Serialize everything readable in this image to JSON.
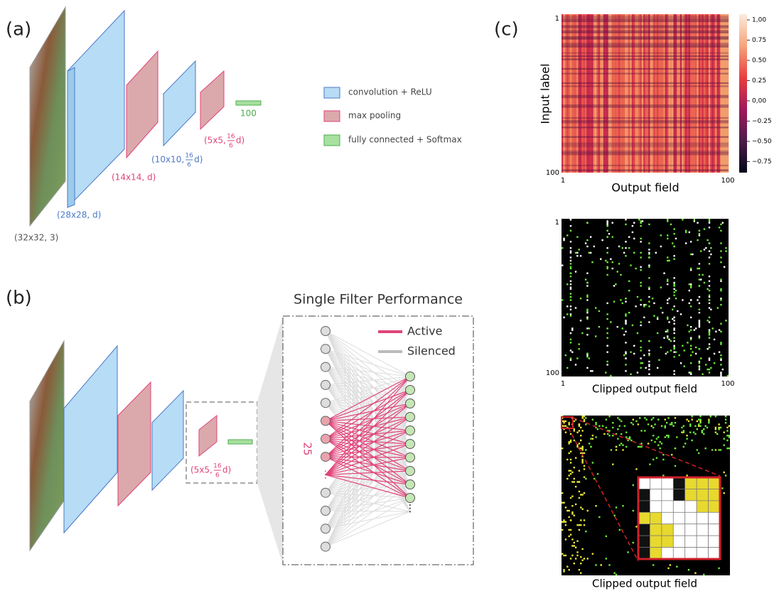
{
  "panel_a": {
    "label": "(a)",
    "input_size": "(32x32, 3)",
    "conv1_size": "(28x28, d)",
    "pool1_size": "(14x14, d)",
    "conv2_size": {
      "prefix": "(10x10, ",
      "numerator": "16",
      "denominator": "6",
      "suffix": "d)"
    },
    "pool2_size": {
      "prefix": "(5x5, ",
      "numerator": "16",
      "denominator": "6",
      "suffix": "d)"
    },
    "fc_size": "100",
    "legend": [
      "convolution + ReLU",
      "max pooling",
      "fully connected + Softmax"
    ]
  },
  "panel_b": {
    "label": "(b)",
    "pool2_size": {
      "prefix": "(5x5, ",
      "numerator": "16",
      "denominator": "6",
      "suffix": "d)"
    },
    "inset_title": "Single Filter Performance",
    "legend": [
      "Active",
      "Silenced"
    ],
    "group_size": "25"
  },
  "panel_c": {
    "label": "(c)",
    "heatmap": {
      "y_label": "Input label",
      "x_label": "Output field",
      "y_ticks": [
        "1",
        "100"
      ],
      "x_ticks": [
        "1",
        "100"
      ],
      "colorbar_ticks": [
        "1,00",
        "0.75",
        "0.50",
        "0.25",
        "0,00",
        "−0.25",
        "−0.50",
        "−0.75"
      ]
    },
    "clipped": {
      "x_label": "Clipped output field",
      "y_ticks": [
        "1",
        "100"
      ],
      "x_ticks": [
        "1",
        "100"
      ]
    },
    "zoom": {
      "x_label": "Clipped output field"
    }
  }
}
